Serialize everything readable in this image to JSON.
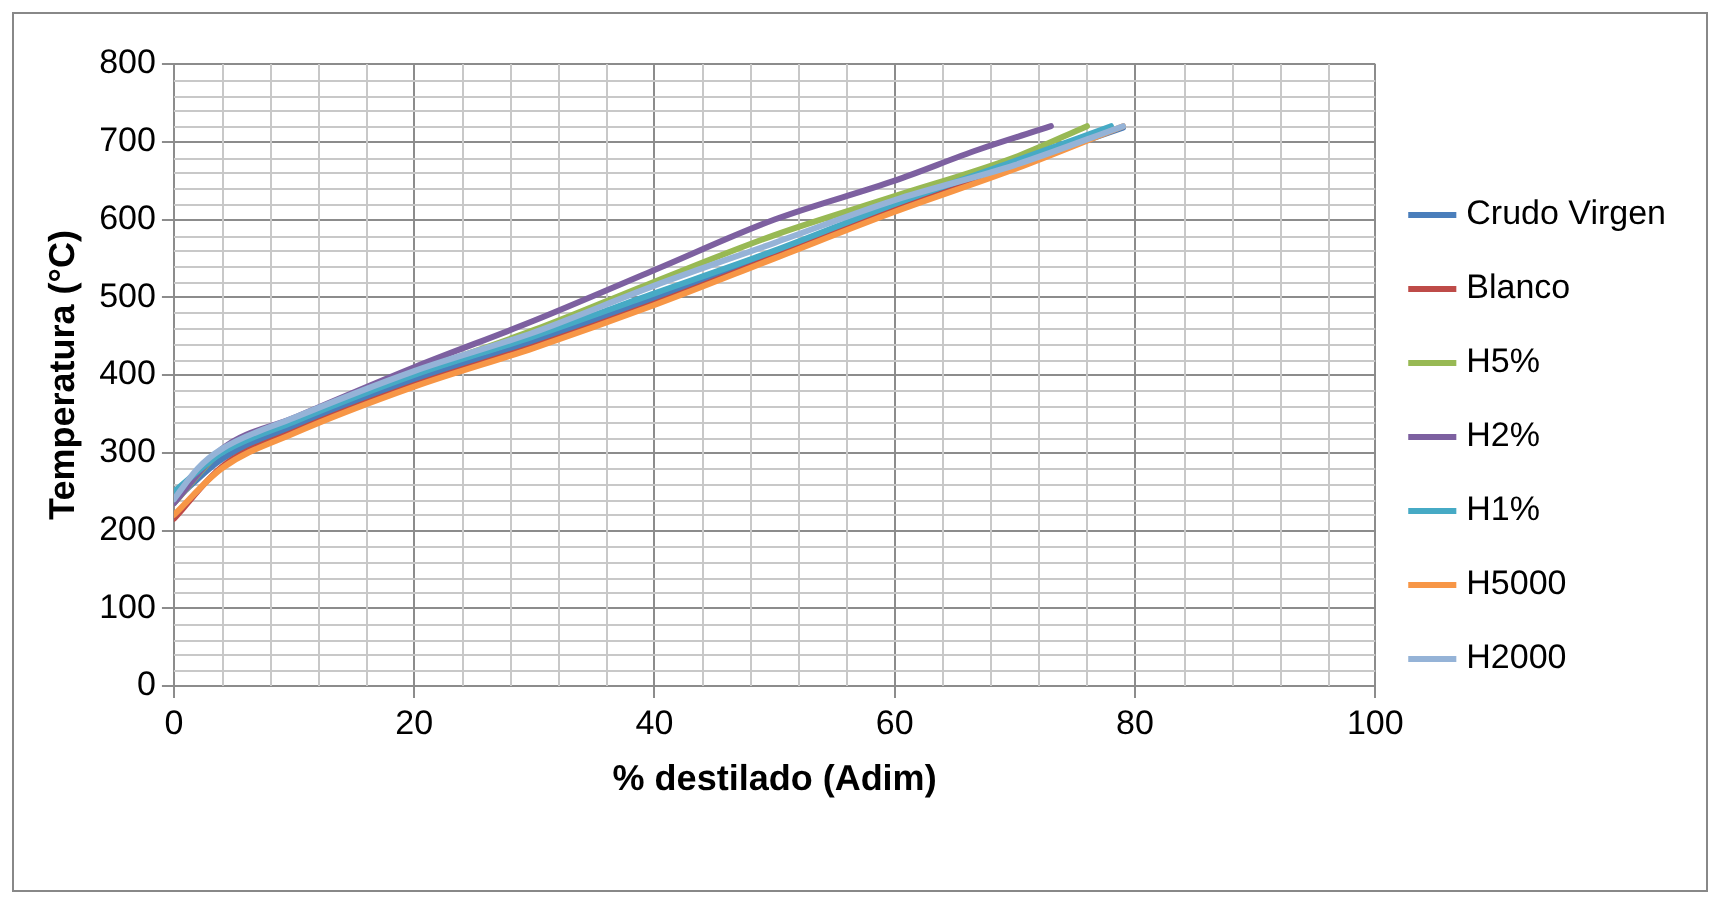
{
  "chart_data": {
    "type": "line",
    "xlabel": "% destilado (Adim)",
    "ylabel": "Temperatura (°C)",
    "xlim": [
      0,
      100
    ],
    "xticks": [
      0,
      20,
      40,
      60,
      80,
      100
    ],
    "ylim": [
      0,
      800
    ],
    "yticks": [
      0,
      100,
      200,
      300,
      400,
      500,
      600,
      700,
      800
    ],
    "grid": true,
    "legend": "right",
    "marker": "none",
    "line_style": "solid",
    "series": [
      {
        "name": "Crudo Virgen",
        "color": "#4a7ebb",
        "x": [
          0,
          4,
          10,
          20,
          30,
          40,
          50,
          60,
          70,
          79
        ],
        "values": [
          238,
          292,
          333,
          393,
          443,
          498,
          555,
          615,
          670,
          718
        ]
      },
      {
        "name": "Blanco",
        "color": "#be4b48",
        "x": [
          0,
          4,
          10,
          20,
          30,
          40,
          50,
          60,
          70,
          78
        ],
        "values": [
          215,
          282,
          327,
          387,
          437,
          492,
          552,
          612,
          667,
          718
        ]
      },
      {
        "name": "H5%",
        "color": "#98b954",
        "x": [
          0,
          4,
          10,
          20,
          30,
          40,
          50,
          60,
          70,
          76
        ],
        "values": [
          235,
          303,
          343,
          403,
          458,
          520,
          580,
          630,
          680,
          720
        ]
      },
      {
        "name": "H2%",
        "color": "#7d60a0",
        "x": [
          0,
          4,
          10,
          20,
          30,
          40,
          50,
          60,
          67,
          73
        ],
        "values": [
          235,
          305,
          345,
          410,
          470,
          535,
          600,
          650,
          690,
          720
        ]
      },
      {
        "name": "H1%",
        "color": "#46aac5",
        "x": [
          0,
          4,
          10,
          20,
          30,
          40,
          50,
          60,
          70,
          78
        ],
        "values": [
          250,
          300,
          340,
          400,
          450,
          505,
          560,
          620,
          675,
          720
        ]
      },
      {
        "name": "H5000",
        "color": "#f79646",
        "x": [
          0,
          4,
          10,
          20,
          30,
          40,
          50,
          60,
          70,
          79
        ],
        "values": [
          220,
          280,
          325,
          385,
          435,
          490,
          550,
          610,
          665,
          720
        ]
      },
      {
        "name": "H2000",
        "color": "#95b3d7",
        "x": [
          0,
          2,
          4,
          10,
          20,
          30,
          40,
          50,
          60,
          70,
          79
        ],
        "values": [
          240,
          280,
          305,
          345,
          405,
          455,
          515,
          570,
          625,
          670,
          720
        ]
      }
    ]
  }
}
